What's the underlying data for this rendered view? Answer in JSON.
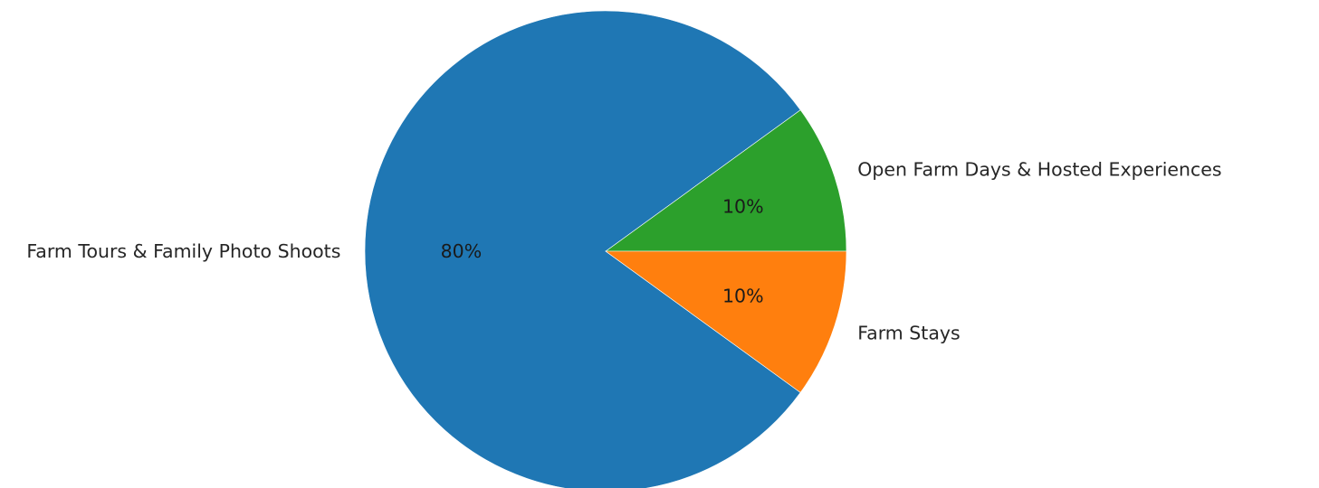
{
  "chart_data": {
    "type": "pie",
    "title": "",
    "start_angle_deg": 0,
    "direction": "counterclockwise",
    "slices": [
      {
        "label": "Open Farm Days & Hosted Experiences",
        "value": 10,
        "pct_label": "10%",
        "color": "#2ca02c"
      },
      {
        "label": "Farm Tours & Family Photo Shoots",
        "value": 80,
        "pct_label": "80%",
        "color": "#1f77b4"
      },
      {
        "label": "Farm Stays",
        "value": 10,
        "pct_label": "10%",
        "color": "#ff7f0e"
      }
    ]
  }
}
